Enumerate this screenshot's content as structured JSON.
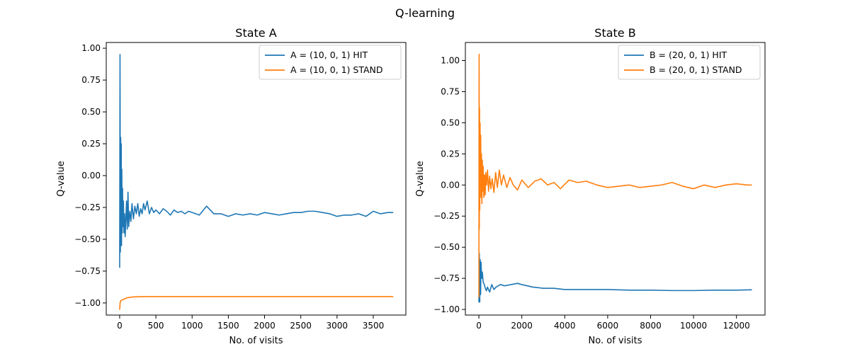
{
  "figure_title": "Q-learning",
  "chart_data": [
    {
      "type": "line",
      "title": "State A",
      "xlabel": "No. of visits",
      "ylabel": "Q-value",
      "xlim": [
        -185,
        3950
      ],
      "ylim": [
        -1.095,
        1.045
      ],
      "xticks": [
        0,
        500,
        1000,
        1500,
        2000,
        2500,
        3000,
        3500
      ],
      "xtick_labels": [
        "0",
        "500",
        "1000",
        "1500",
        "2000",
        "2500",
        "3000",
        "3500"
      ],
      "yticks": [
        1.0,
        0.75,
        0.5,
        0.25,
        0.0,
        -0.25,
        -0.5,
        -0.75,
        -1.0
      ],
      "ytick_labels": [
        "1.00",
        "0.75",
        "0.50",
        "0.25",
        "0.00",
        "−0.25",
        "−0.50",
        "−0.75",
        "−1.00"
      ],
      "grid": false,
      "legend_position": "top-right",
      "series": [
        {
          "name": "A = (10, 0, 1) HIT",
          "color": "#1f77b4",
          "x": [
            0,
            5,
            10,
            14,
            18,
            22,
            26,
            30,
            35,
            40,
            46,
            52,
            60,
            68,
            76,
            85,
            95,
            105,
            115,
            125,
            140,
            155,
            170,
            190,
            210,
            230,
            250,
            270,
            290,
            310,
            330,
            350,
            380,
            410,
            440,
            470,
            500,
            550,
            600,
            650,
            700,
            750,
            800,
            850,
            900,
            950,
            1000,
            1100,
            1200,
            1300,
            1400,
            1500,
            1600,
            1700,
            1800,
            1900,
            2000,
            2100,
            2200,
            2300,
            2400,
            2500,
            2600,
            2700,
            2800,
            2900,
            3000,
            3100,
            3200,
            3300,
            3400,
            3500,
            3600,
            3700,
            3770
          ],
          "y": [
            -0.72,
            0.95,
            -0.6,
            0.3,
            -0.5,
            0.25,
            -0.55,
            0.05,
            -0.45,
            -0.1,
            -0.4,
            -0.2,
            -0.45,
            -0.3,
            -0.48,
            -0.35,
            -0.2,
            -0.42,
            -0.13,
            -0.4,
            -0.28,
            -0.36,
            -0.22,
            -0.34,
            -0.24,
            -0.3,
            -0.22,
            -0.32,
            -0.26,
            -0.3,
            -0.22,
            -0.27,
            -0.2,
            -0.3,
            -0.25,
            -0.29,
            -0.27,
            -0.3,
            -0.26,
            -0.28,
            -0.31,
            -0.27,
            -0.29,
            -0.28,
            -0.3,
            -0.28,
            -0.29,
            -0.31,
            -0.24,
            -0.3,
            -0.3,
            -0.32,
            -0.3,
            -0.31,
            -0.3,
            -0.31,
            -0.29,
            -0.3,
            -0.31,
            -0.3,
            -0.29,
            -0.29,
            -0.28,
            -0.28,
            -0.29,
            -0.3,
            -0.32,
            -0.31,
            -0.31,
            -0.3,
            -0.32,
            -0.28,
            -0.3,
            -0.29,
            -0.29
          ]
        },
        {
          "name": "A = (10, 0, 1) STAND",
          "color": "#ff7f0e",
          "x": [
            0,
            3,
            6,
            10,
            20,
            40,
            60,
            80,
            100,
            150,
            200,
            300,
            500,
            1000,
            2000,
            3000,
            3770
          ],
          "y": [
            -1.05,
            -1.03,
            -1.0,
            -0.99,
            -0.98,
            -0.975,
            -0.97,
            -0.965,
            -0.96,
            -0.955,
            -0.952,
            -0.95,
            -0.95,
            -0.95,
            -0.95,
            -0.95,
            -0.95
          ]
        }
      ]
    },
    {
      "type": "line",
      "title": "State B",
      "xlabel": "No. of visits",
      "ylabel": "Q-value",
      "xlim": [
        -630,
        13330
      ],
      "ylim": [
        -1.045,
        1.145
      ],
      "xticks": [
        0,
        2000,
        4000,
        6000,
        8000,
        10000,
        12000
      ],
      "xtick_labels": [
        "0",
        "2000",
        "4000",
        "6000",
        "8000",
        "10000",
        "12000"
      ],
      "yticks": [
        1.0,
        0.75,
        0.5,
        0.25,
        0.0,
        -0.25,
        -0.5,
        -0.75,
        -1.0
      ],
      "ytick_labels": [
        "1.00",
        "0.75",
        "0.50",
        "0.25",
        "0.00",
        "−0.25",
        "−0.50",
        "−0.75",
        "−1.00"
      ],
      "grid": false,
      "legend_position": "top-right",
      "series": [
        {
          "name": "B = (20, 0, 1) HIT",
          "color": "#1f77b4",
          "x": [
            0,
            20,
            40,
            60,
            80,
            100,
            130,
            160,
            200,
            250,
            300,
            350,
            400,
            500,
            600,
            700,
            800,
            1000,
            1200,
            1500,
            1800,
            2000,
            2500,
            3000,
            3500,
            4000,
            5000,
            6000,
            7000,
            8000,
            9000,
            10000,
            11000,
            12000,
            12700
          ],
          "y": [
            -0.94,
            -0.55,
            -0.94,
            -0.6,
            -0.88,
            -0.62,
            -0.75,
            -0.7,
            -0.78,
            -0.8,
            -0.83,
            -0.85,
            -0.82,
            -0.86,
            -0.8,
            -0.84,
            -0.82,
            -0.8,
            -0.81,
            -0.8,
            -0.79,
            -0.8,
            -0.82,
            -0.83,
            -0.83,
            -0.84,
            -0.84,
            -0.84,
            -0.845,
            -0.845,
            -0.848,
            -0.848,
            -0.845,
            -0.845,
            -0.842
          ]
        },
        {
          "name": "B = (20, 0, 1) STAND",
          "color": "#ff7f0e",
          "x": [
            0,
            10,
            20,
            30,
            40,
            55,
            70,
            85,
            100,
            120,
            140,
            160,
            180,
            200,
            230,
            260,
            290,
            320,
            360,
            400,
            450,
            500,
            560,
            620,
            700,
            780,
            860,
            950,
            1050,
            1150,
            1300,
            1450,
            1600,
            1800,
            2000,
            2300,
            2600,
            2900,
            3200,
            3500,
            3800,
            4200,
            4600,
            5000,
            5500,
            6000,
            6500,
            7000,
            7500,
            8000,
            8500,
            9000,
            9500,
            10000,
            10500,
            11000,
            11500,
            12000,
            12500,
            12700
          ],
          "y": [
            -0.9,
            1.05,
            -0.35,
            0.62,
            -0.2,
            0.5,
            0.05,
            0.4,
            -0.1,
            0.25,
            -0.15,
            0.2,
            -0.05,
            0.15,
            -0.1,
            0.08,
            -0.08,
            0.1,
            0.0,
            0.12,
            -0.05,
            0.07,
            -0.03,
            0.05,
            -0.06,
            0.1,
            -0.02,
            0.12,
            0.0,
            0.08,
            -0.02,
            0.06,
            0.0,
            -0.04,
            0.04,
            -0.02,
            0.03,
            0.05,
            0.0,
            0.02,
            -0.03,
            0.04,
            0.02,
            0.03,
            0.0,
            -0.02,
            -0.01,
            0.0,
            -0.02,
            -0.01,
            0.0,
            0.02,
            -0.01,
            -0.03,
            0.0,
            -0.02,
            0.0,
            0.01,
            0.0,
            0.0
          ]
        }
      ]
    }
  ]
}
